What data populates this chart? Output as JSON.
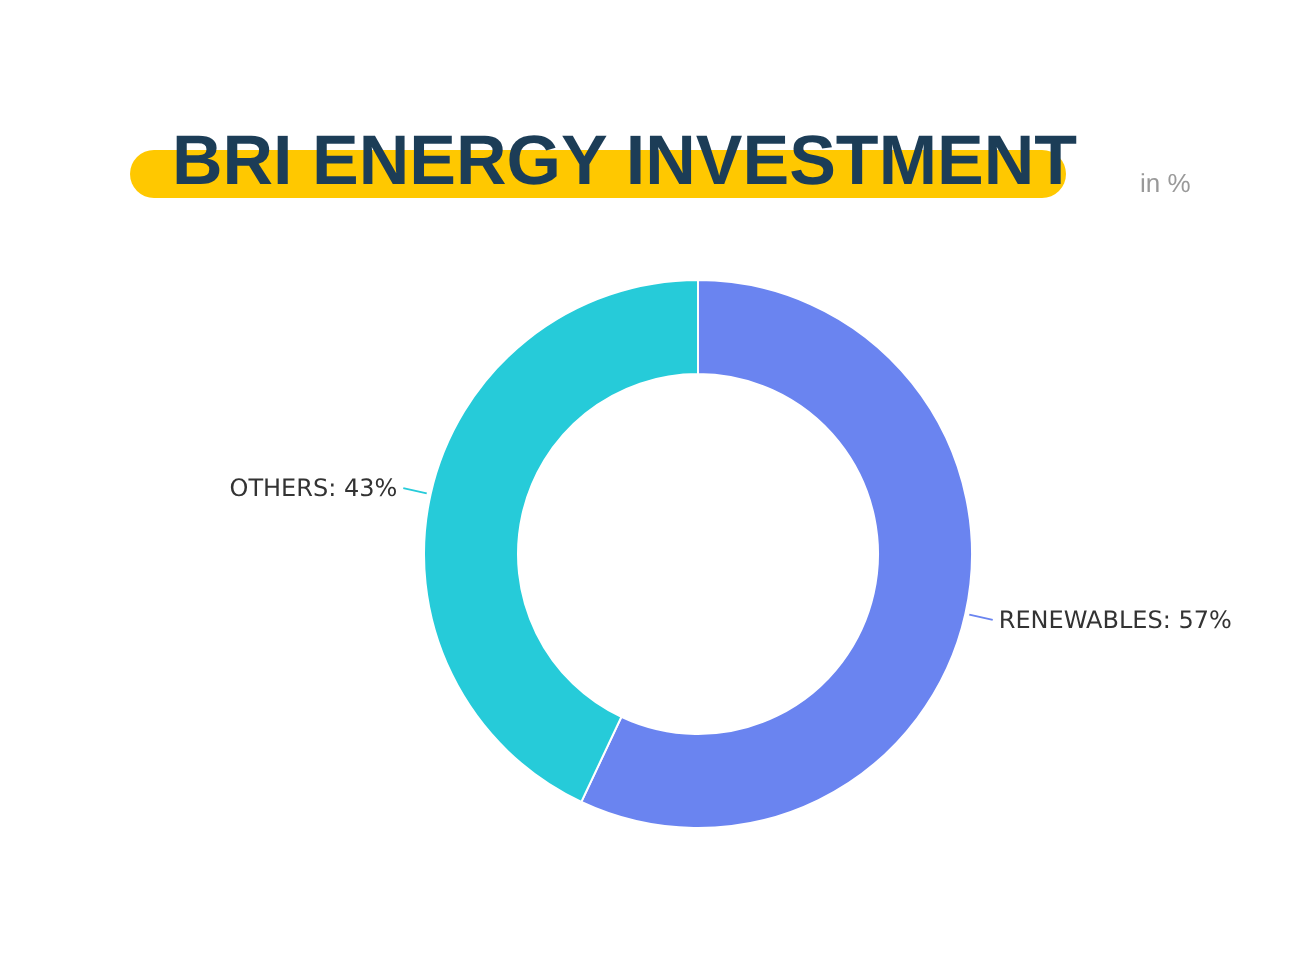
{
  "chart_data": {
    "type": "donut",
    "title": "BRI ENERGY INVESTMENT",
    "subtitle": "in %",
    "categories": [
      "RENEWABLES",
      "OTHERS"
    ],
    "values": [
      57,
      43
    ],
    "colors": [
      "#6a84f0",
      "#26cbd9"
    ],
    "value_labels": [
      "57%",
      "43%"
    ]
  }
}
